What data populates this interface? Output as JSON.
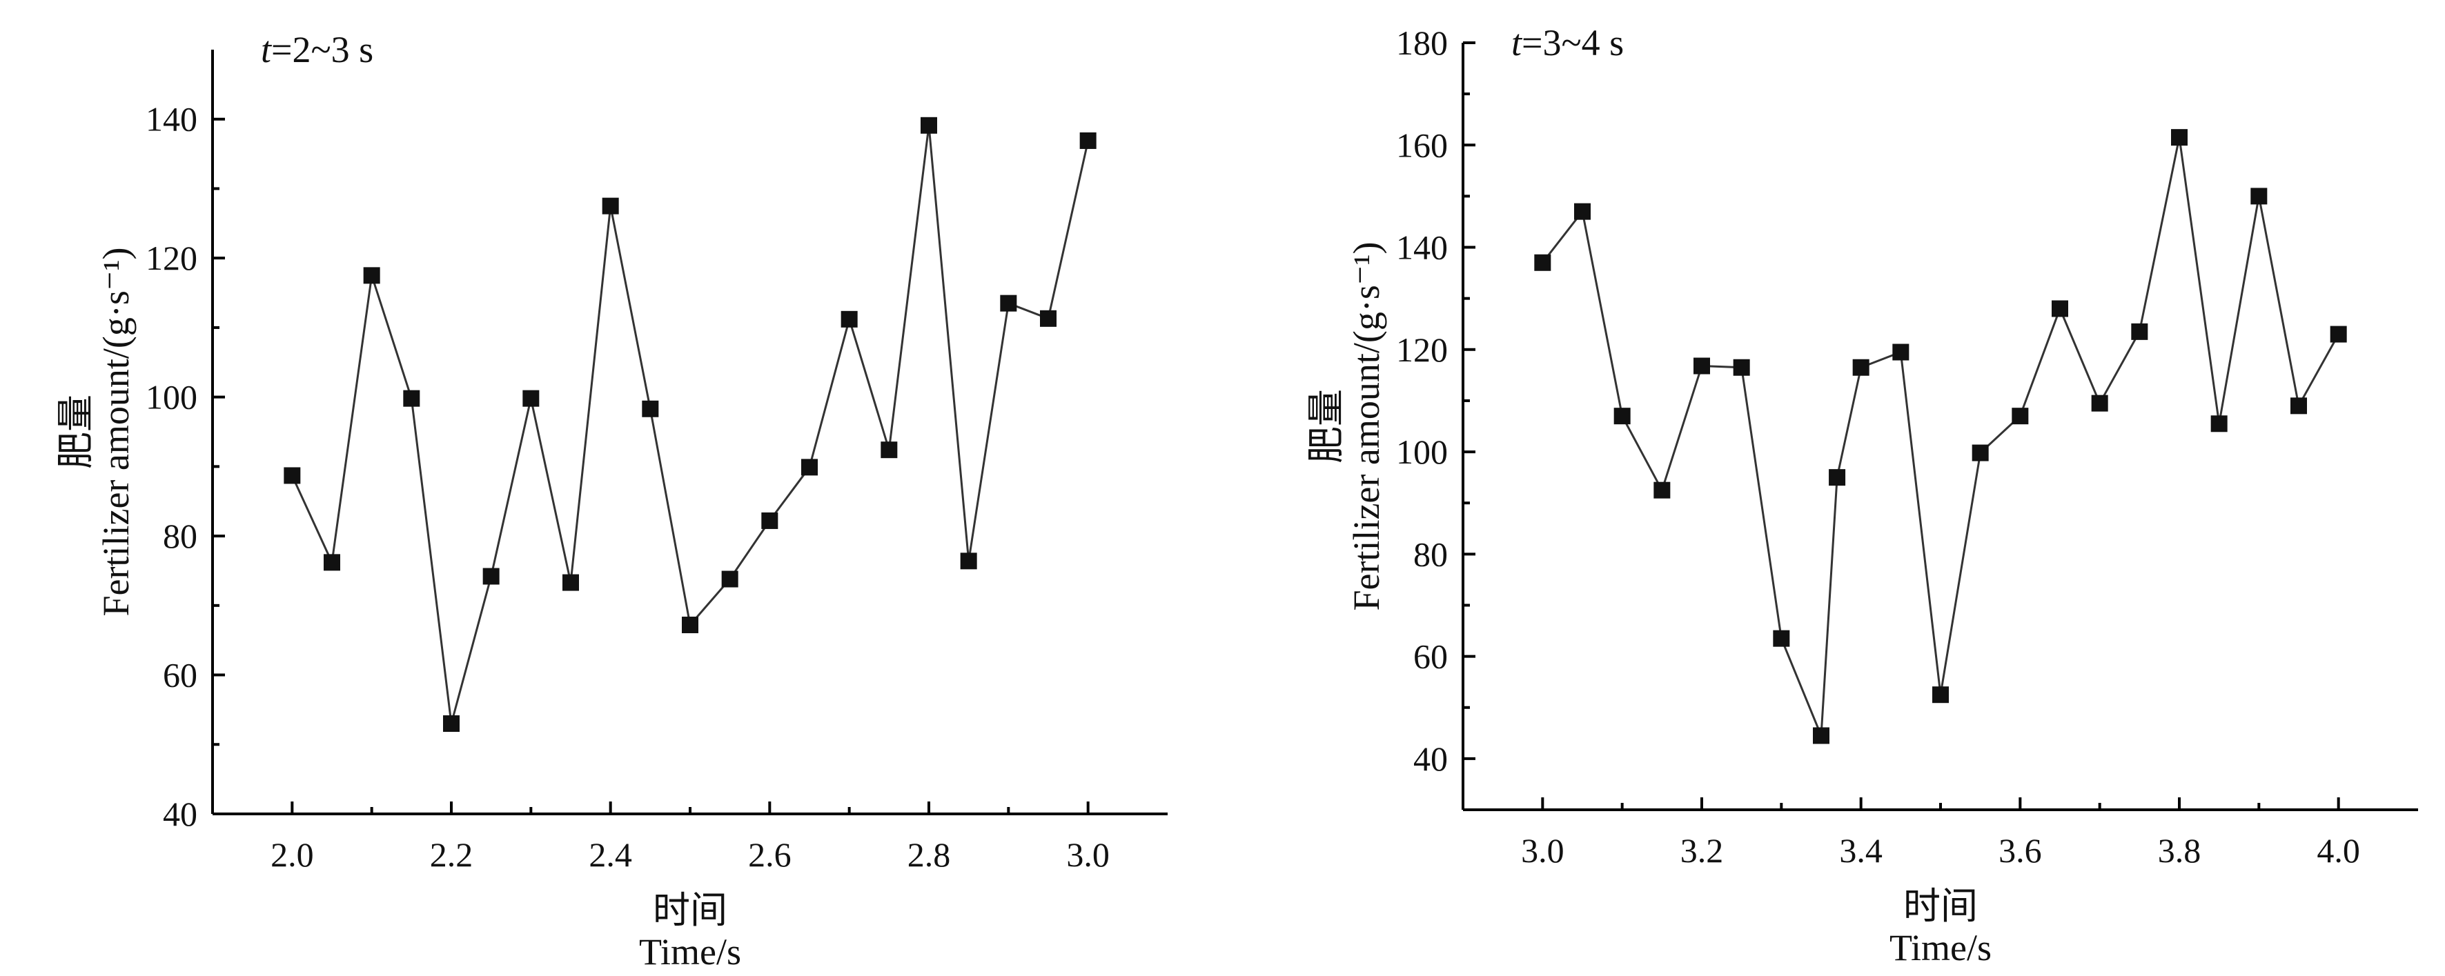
{
  "chart_data": [
    {
      "type": "line",
      "annotation_var": "t",
      "annotation_text": "=2~3 s",
      "xlabel_cn": "时间",
      "xlabel": "Time/s",
      "ylabel_cn": "肥量",
      "ylabel": "Fertilizer amount/(g·s⁻¹)",
      "xlim": [
        1.9,
        3.1
      ],
      "ylim": [
        40,
        150
      ],
      "xticks": [
        2.0,
        2.2,
        2.4,
        2.6,
        2.8,
        3.0
      ],
      "xtick_labels": [
        "2.0",
        "2.2",
        "2.4",
        "2.6",
        "2.8",
        "3.0"
      ],
      "yticks": [
        40,
        60,
        80,
        100,
        120,
        140
      ],
      "ytick_labels": [
        "40",
        "60",
        "80",
        "100",
        "120",
        "140"
      ],
      "grid": false,
      "series": [
        {
          "marker": "square",
          "x": [
            2.0,
            2.05,
            2.1,
            2.15,
            2.2,
            2.25,
            2.3,
            2.35,
            2.4,
            2.45,
            2.5,
            2.55,
            2.6,
            2.65,
            2.7,
            2.75,
            2.8,
            2.85,
            2.9,
            2.95,
            3.0
          ],
          "y": [
            88.7,
            76.2,
            117.5,
            99.8,
            53.0,
            74.2,
            99.8,
            73.3,
            127.5,
            98.3,
            67.2,
            73.8,
            82.2,
            89.9,
            111.2,
            92.4,
            139.1,
            76.4,
            113.5,
            111.3,
            136.9
          ]
        }
      ]
    },
    {
      "type": "line",
      "annotation_var": "t",
      "annotation_text": "=3~4 s",
      "xlabel_cn": "时间",
      "xlabel": "Time/s",
      "ylabel_cn": "肥量",
      "ylabel": "Fertilizer amount/(g·s⁻¹)",
      "xlim": [
        2.9,
        4.1
      ],
      "ylim": [
        30,
        180
      ],
      "xticks": [
        3.0,
        3.2,
        3.4,
        3.6,
        3.8,
        4.0
      ],
      "xtick_labels": [
        "3.0",
        "3.2",
        "3.4",
        "3.6",
        "3.8",
        "4.0"
      ],
      "yticks": [
        40,
        60,
        80,
        100,
        120,
        140,
        160,
        180
      ],
      "ytick_labels": [
        "40",
        "60",
        "80",
        "100",
        "120",
        "140",
        "160",
        "180"
      ],
      "grid": false,
      "series": [
        {
          "marker": "square",
          "x": [
            3.0,
            3.05,
            3.1,
            3.15,
            3.2,
            3.25,
            3.3,
            3.35,
            3.37,
            3.4,
            3.45,
            3.5,
            3.55,
            3.6,
            3.65,
            3.7,
            3.75,
            3.8,
            3.85,
            3.9,
            3.95,
            4.0
          ],
          "y": [
            137.0,
            147.0,
            107.0,
            92.5,
            116.8,
            116.5,
            63.5,
            44.5,
            95.0,
            116.5,
            119.5,
            52.5,
            99.8,
            107.0,
            128.0,
            109.5,
            123.5,
            161.5,
            105.5,
            150.0,
            109.0,
            123.0
          ]
        }
      ]
    }
  ]
}
